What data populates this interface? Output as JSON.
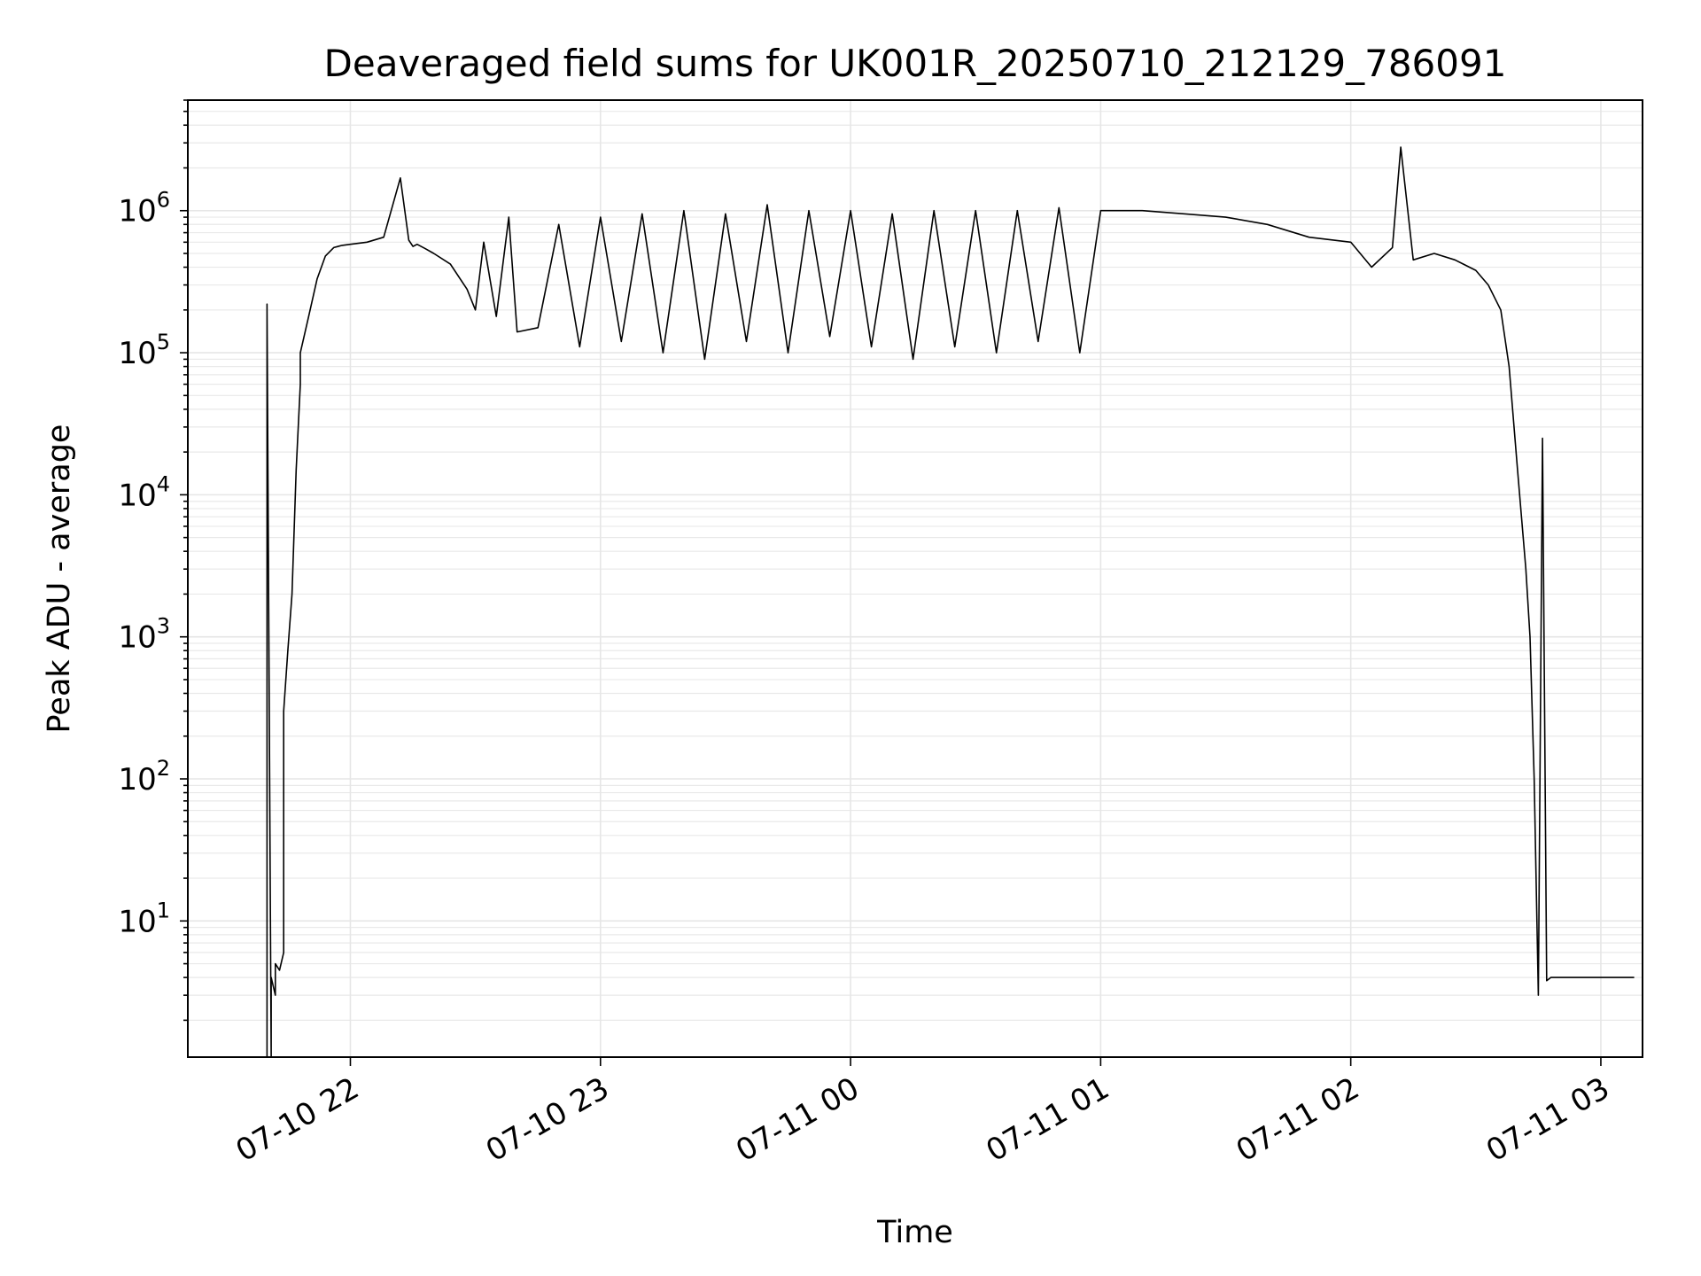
{
  "chart_data": {
    "type": "line",
    "title": "Deaveraged field sums for UK001R_20250710_212129_786091",
    "xlabel": "Time",
    "ylabel": "Peak ADU - average",
    "yscale": "log",
    "grid": true,
    "line_color": "#000000",
    "xlim": [
      "2025-07-10T21:21:00",
      "2025-07-11T03:10:00"
    ],
    "ylim": [
      1.1,
      6000000
    ],
    "x_ticks": [
      "07-10 22",
      "07-10 23",
      "07-11 00",
      "07-11 01",
      "07-11 02",
      "07-11 03"
    ],
    "y_ticks": [
      {
        "base": "10",
        "exp": "1",
        "value": 10
      },
      {
        "base": "10",
        "exp": "2",
        "value": 100
      },
      {
        "base": "10",
        "exp": "3",
        "value": 1000
      },
      {
        "base": "10",
        "exp": "4",
        "value": 10000
      },
      {
        "base": "10",
        "exp": "5",
        "value": 100000
      },
      {
        "base": "10",
        "exp": "6",
        "value": 1000000
      }
    ],
    "series": [
      {
        "x": [
          "21:40",
          "21:40",
          "21:41",
          "21:41",
          "21:42",
          "21:42",
          "21:43",
          "21:44",
          "21:44",
          "21:45",
          "21:46",
          "21:47",
          "21:48",
          "21:48",
          "21:50",
          "21:52",
          "21:54",
          "21:56",
          "21:58",
          "22:00",
          "22:04",
          "22:08",
          "22:12",
          "22:14",
          "22:15",
          "22:16",
          "22:18",
          "22:20",
          "22:24",
          "22:28",
          "22:30",
          "22:32",
          "22:35",
          "22:38",
          "22:40",
          "22:45",
          "22:50",
          "22:55",
          "23:00",
          "23:05",
          "23:10",
          "23:15",
          "23:20",
          "23:25",
          "23:30",
          "23:35",
          "23:40",
          "23:45",
          "23:50",
          "23:55",
          "00:00",
          "00:05",
          "00:10",
          "00:15",
          "00:20",
          "00:25",
          "00:30",
          "00:35",
          "00:40",
          "00:45",
          "00:50",
          "00:55",
          "01:00",
          "01:10",
          "01:20",
          "01:30",
          "01:40",
          "01:50",
          "02:00",
          "02:05",
          "02:10",
          "02:12",
          "02:15",
          "02:20",
          "02:25",
          "02:30",
          "02:33",
          "02:36",
          "02:38",
          "02:40",
          "02:42",
          "02:43",
          "02:44",
          "02:45",
          "02:46",
          "02:47",
          "02:48",
          "02:50",
          "02:55",
          "03:00",
          "03:05",
          "03:08"
        ],
        "y": [
          1.1,
          220000,
          1.1,
          4,
          3,
          5,
          4.5,
          6,
          300,
          800,
          2000,
          15000,
          60000,
          100000,
          180000,
          330000,
          480000,
          550000,
          570000,
          580000,
          600000,
          650000,
          1700000,
          620000,
          560000,
          580000,
          540000,
          500000,
          420000,
          280000,
          200000,
          600000,
          180000,
          900000,
          140000,
          150000,
          800000,
          110000,
          900000,
          120000,
          950000,
          100000,
          1000000,
          90000,
          950000,
          120000,
          1100000,
          100000,
          1000000,
          130000,
          1000000,
          110000,
          950000,
          90000,
          1000000,
          110000,
          1000000,
          100000,
          1000000,
          120000,
          1050000,
          100000,
          1000000,
          1000000,
          950000,
          900000,
          800000,
          650000,
          600000,
          400000,
          550000,
          2800000,
          450000,
          500000,
          450000,
          380000,
          300000,
          200000,
          80000,
          15000,
          3000,
          1000,
          100,
          3,
          25000,
          3.8,
          4,
          4,
          4,
          4,
          4,
          4
        ]
      }
    ]
  }
}
